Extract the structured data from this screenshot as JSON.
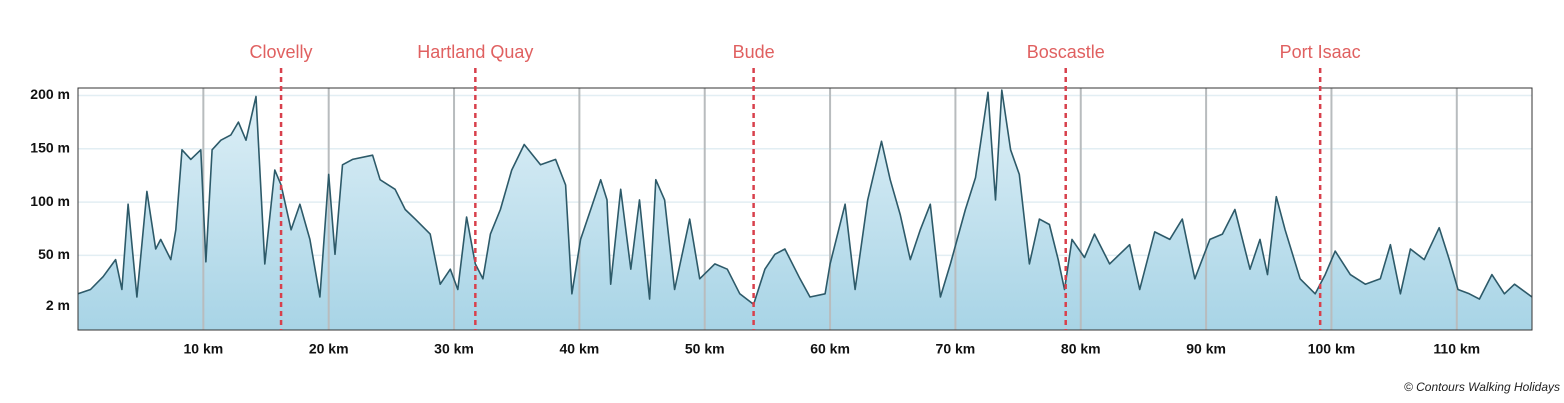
{
  "chart_data": {
    "type": "area",
    "x_label_unit": null,
    "x": [
      0.0,
      1.0,
      2.0,
      3.0,
      3.5,
      4.0,
      4.7,
      5.5,
      6.2,
      6.6,
      7.4,
      7.8,
      8.3,
      9.0,
      9.8,
      10.2,
      10.7,
      11.4,
      12.2,
      12.8,
      13.4,
      14.2,
      14.9,
      15.7,
      16.2,
      17.0,
      17.7,
      18.5,
      19.3,
      20.0,
      20.5,
      21.1,
      21.9,
      23.5,
      24.1,
      25.3,
      26.1,
      26.9,
      28.1,
      28.9,
      29.7,
      30.3,
      31.0,
      31.7,
      32.3,
      32.9,
      33.7,
      34.6,
      35.6,
      36.9,
      38.1,
      38.9,
      39.4,
      40.1,
      40.9,
      41.7,
      42.2,
      42.5,
      43.3,
      44.1,
      44.8,
      45.6,
      46.1,
      46.8,
      47.6,
      48.8,
      49.6,
      50.8,
      51.8,
      52.8,
      53.9,
      54.8,
      55.6,
      56.4,
      57.6,
      58.4,
      59.6,
      60.0,
      61.2,
      62.0,
      63.0,
      64.1,
      64.8,
      65.6,
      66.4,
      67.2,
      68.0,
      68.8,
      69.6,
      70.8,
      71.6,
      72.6,
      73.2,
      73.7,
      74.4,
      75.1,
      75.9,
      76.7,
      77.5,
      78.2,
      78.7,
      79.3,
      80.3,
      81.1,
      82.3,
      83.9,
      84.7,
      85.9,
      87.1,
      88.1,
      89.1,
      90.3,
      91.3,
      92.3,
      93.5,
      94.3,
      94.9,
      95.6,
      96.3,
      97.5,
      98.7,
      99.5,
      100.3,
      101.5,
      102.7,
      103.9,
      104.7,
      105.5,
      106.3,
      107.4,
      108.6,
      109.4,
      110.1,
      111.0,
      111.8,
      112.8,
      113.8,
      114.6,
      116.0
    ],
    "values": [
      14,
      18,
      30,
      46,
      18,
      98,
      11,
      110,
      56,
      65,
      46,
      74,
      149,
      140,
      149,
      44,
      149,
      158,
      163,
      175,
      158,
      199,
      42,
      130,
      116,
      74,
      98,
      65,
      11,
      126,
      51,
      135,
      140,
      144,
      121,
      112,
      93,
      84,
      70,
      23,
      37,
      18,
      86,
      42,
      28,
      70,
      93,
      130,
      154,
      135,
      140,
      116,
      14,
      65,
      93,
      121,
      102,
      23,
      112,
      37,
      102,
      9,
      121,
      102,
      18,
      84,
      28,
      42,
      37,
      14,
      4,
      37,
      51,
      56,
      28,
      11,
      14,
      42,
      98,
      18,
      102,
      157,
      121,
      88,
      46,
      74,
      98,
      11,
      42,
      93,
      123,
      203,
      102,
      205,
      149,
      126,
      42,
      84,
      79,
      46,
      18,
      65,
      48,
      70,
      42,
      60,
      18,
      72,
      65,
      84,
      28,
      65,
      70,
      93,
      37,
      65,
      32,
      105,
      74,
      28,
      14,
      32,
      54,
      32,
      23,
      28,
      60,
      14,
      56,
      46,
      76,
      46,
      18,
      14,
      9,
      32,
      14,
      23,
      11
    ],
    "line_color": "#2d5a69",
    "fill_colors": [
      "#dff0f7",
      "#a8d4e6"
    ],
    "xlim": [
      0,
      116
    ],
    "ylim": [
      -20,
      207
    ],
    "xticks": [
      {
        "value": 10,
        "label": "10 km"
      },
      {
        "value": 20,
        "label": "20 km"
      },
      {
        "value": 30,
        "label": "30 km"
      },
      {
        "value": 40,
        "label": "40 km"
      },
      {
        "value": 50,
        "label": "50 km"
      },
      {
        "value": 60,
        "label": "60 km"
      },
      {
        "value": 70,
        "label": "70 km"
      },
      {
        "value": 80,
        "label": "80 km"
      },
      {
        "value": 90,
        "label": "90 km"
      },
      {
        "value": 100,
        "label": "100 km"
      },
      {
        "value": 110,
        "label": "110 km"
      }
    ],
    "yticks": [
      {
        "value": 2,
        "label": "2 m"
      },
      {
        "value": 50,
        "label": "50 m"
      },
      {
        "value": 100,
        "label": "100 m"
      },
      {
        "value": 150,
        "label": "150 m"
      },
      {
        "value": 200,
        "label": "200 m"
      }
    ],
    "grid": true,
    "annotations": [
      {
        "label": "Clovelly",
        "x": 16.2
      },
      {
        "label": "Hartland Quay",
        "x": 31.7
      },
      {
        "label": "Bude",
        "x": 53.9
      },
      {
        "label": "Boscastle",
        "x": 78.8
      },
      {
        "label": "Port Isaac",
        "x": 99.1
      }
    ],
    "annotation_color": "#d8404c",
    "credit": "© Contours Walking Holidays"
  }
}
